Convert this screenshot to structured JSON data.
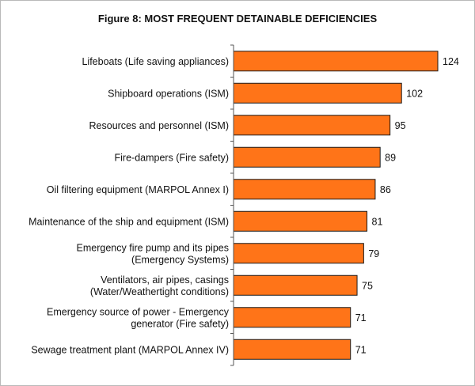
{
  "chart_data": {
    "type": "bar",
    "orientation": "horizontal",
    "title": "Figure 8: MOST FREQUENT DETAINABLE DEFICIENCIES",
    "categories": [
      [
        "Lifeboats (Life saving appliances)"
      ],
      [
        "Shipboard operations (ISM)"
      ],
      [
        "Resources and personnel (ISM)"
      ],
      [
        "Fire-dampers (Fire safety)"
      ],
      [
        "Oil filtering equipment (MARPOL Annex I)"
      ],
      [
        "Maintenance of the ship and equipment (ISM)"
      ],
      [
        "Emergency fire pump and its pipes",
        "(Emergency Systems)"
      ],
      [
        "Ventilators, air pipes, casings",
        "(Water/Weathertight conditions)"
      ],
      [
        "Emergency source of power - Emergency",
        "generator (Fire safety)"
      ],
      [
        "Sewage treatment plant (MARPOL Annex IV)"
      ]
    ],
    "values": [
      124,
      102,
      95,
      89,
      86,
      81,
      79,
      75,
      71,
      71
    ],
    "xlim": [
      0,
      124
    ],
    "bar_color": "#ff7418",
    "bar_edge_color": "#1a1a1a",
    "axis_color": "#555555",
    "grid": false,
    "legend": "none"
  }
}
